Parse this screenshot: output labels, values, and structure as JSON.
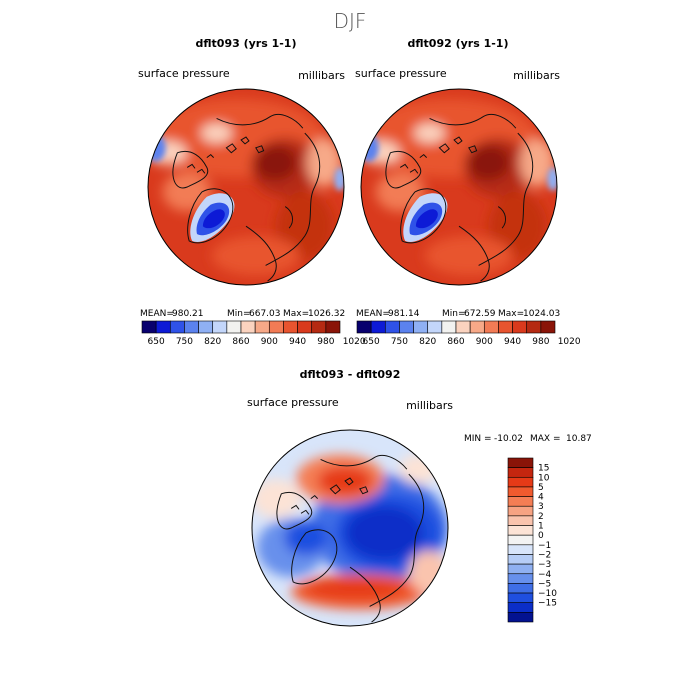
{
  "figure_title": "DJF",
  "chart_data": [
    {
      "type": "heatmap",
      "projection": "north-polar-stereographic",
      "title": "dflt093 (yrs 1-1)",
      "field": "surface pressure",
      "units": "millibars",
      "stats": {
        "mean": "980.21",
        "min": "667.03",
        "max": "1026.32"
      },
      "stats_labels": {
        "mean": "MEAN=",
        "min": "Min=",
        "max": "Max="
      },
      "colorbar": {
        "orientation": "horizontal",
        "tick_labels": [
          "650",
          "750",
          "820",
          "860",
          "900",
          "940",
          "980",
          "1020"
        ],
        "colors": [
          "#08006e",
          "#0d1ad6",
          "#2f52e8",
          "#5b82ee",
          "#8fb0f4",
          "#c3d6fa",
          "#f2f2f0",
          "#fbd3bf",
          "#f7a988",
          "#f27b55",
          "#e8542f",
          "#d93a1d",
          "#b52a12",
          "#8a1408"
        ]
      }
    },
    {
      "type": "heatmap",
      "projection": "north-polar-stereographic",
      "title": "dflt092 (yrs 1-1)",
      "field": "surface pressure",
      "units": "millibars",
      "stats": {
        "mean": "981.14",
        "min": "672.59",
        "max": "1024.03"
      },
      "stats_labels": {
        "mean": "MEAN=",
        "min": "Min=",
        "max": "Max="
      },
      "colorbar": {
        "orientation": "horizontal",
        "tick_labels": [
          "650",
          "750",
          "820",
          "860",
          "900",
          "940",
          "980",
          "1020"
        ],
        "colors": [
          "#08006e",
          "#0d1ad6",
          "#2f52e8",
          "#5b82ee",
          "#8fb0f4",
          "#c3d6fa",
          "#f2f2f0",
          "#fbd3bf",
          "#f7a988",
          "#f27b55",
          "#e8542f",
          "#d93a1d",
          "#b52a12",
          "#8a1408"
        ]
      }
    },
    {
      "type": "heatmap",
      "projection": "north-polar-stereographic",
      "title": "dflt093 - dflt092",
      "field": "surface pressure",
      "units": "millibars",
      "stats": {
        "min": "-10.02",
        "max": "10.87"
      },
      "stats_labels": {
        "min": "MIN =",
        "max": "MAX ="
      },
      "colorbar": {
        "orientation": "vertical",
        "tick_labels": [
          "15",
          "10",
          "5",
          "4",
          "3",
          "2",
          "1",
          "0",
          "-1",
          "-2",
          "-3",
          "-4",
          "-5",
          "-10",
          "-15"
        ],
        "colors": [
          "#8a1408",
          "#c4260f",
          "#e63a17",
          "#f05a2e",
          "#f47e55",
          "#f7a383",
          "#fac4ae",
          "#fce3d6",
          "#f3f3f3",
          "#d8e5fa",
          "#b6cdf6",
          "#8fb0f1",
          "#6790ec",
          "#3f6ee6",
          "#1f4fe0",
          "#0b2ec8",
          "#031290"
        ]
      }
    }
  ]
}
